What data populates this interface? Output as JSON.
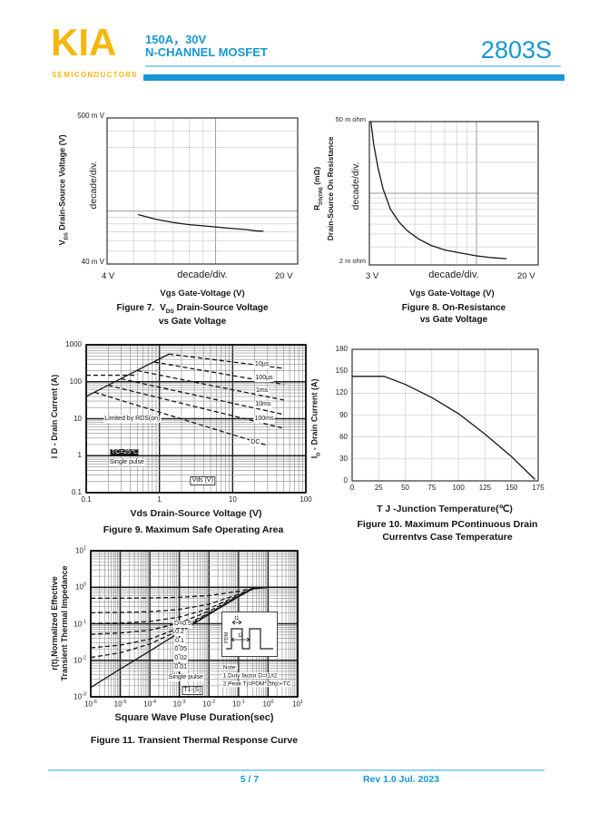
{
  "header": {
    "logo": "KIA",
    "logo_sub": "SEMICONDUCTORS",
    "spec_line1": "150A，30V",
    "spec_line2": "N-CHANNEL MOSFET",
    "part_number": "2803S"
  },
  "footer": {
    "page": "5 / 7",
    "rev": "Rev 1.0 Jul. 2023"
  },
  "colors": {
    "brand_blue": "#1697d4",
    "brand_yellow": "#f6b70c",
    "rule_light_blue": "#8fd4ef",
    "grid_light": "#c4c4c4",
    "grid_dark": "#8a8a8a",
    "curve": "#161616"
  },
  "chart_data": [
    {
      "id": "fig7",
      "type": "line",
      "caption": {
        "pre": "Figure 7.",
        "base": "V",
        "sub": "DS",
        "rest": " Drain-Source Voltage",
        "line2": "vs Gate Voltage"
      },
      "ylabel": {
        "base": "V",
        "sub": "DS",
        "rest": " Drain-Source Voltage (V)"
      },
      "ylabel_inner": "decade/div.",
      "y_top_label": "500 m V",
      "y_bottom_label": "40 m V",
      "x_left_label": "4 V",
      "x_center_label": "decade/div.",
      "x_right_label": "20 V",
      "xlabel": "Vgs Gate-Voltage (V)",
      "x_scale": "log",
      "x_range": [
        4,
        20
      ],
      "y_scale": "log",
      "y_range": [
        0.04,
        0.5
      ],
      "grid": "light",
      "series": [
        {
          "name": "VDS vs VGS",
          "style": "solid",
          "points": [
            [
              5.2,
              0.094
            ],
            [
              6,
              0.087
            ],
            [
              7,
              0.082
            ],
            [
              8,
              0.079
            ],
            [
              9,
              0.0775
            ],
            [
              10,
              0.076
            ],
            [
              11,
              0.0745
            ],
            [
              12,
              0.0735
            ],
            [
              13,
              0.0725
            ],
            [
              14,
              0.071
            ],
            [
              15,
              0.0705
            ]
          ]
        }
      ]
    },
    {
      "id": "fig8",
      "type": "line",
      "caption": {
        "line1": "Figure 8. On-Resistance",
        "line2": "vs Gate Voltage"
      },
      "ylabel": {
        "base": "R",
        "sub": "DS(ON)",
        "rest": " (mΩ)",
        "line2": "Drain-Source On Resistance"
      },
      "ylabel_inner": "decade/div.",
      "y_top_label": "50 m ohm",
      "y_bottom_label": "2 m ohm",
      "x_left_label": "3 V",
      "x_center_label": "decade/div.",
      "x_right_label": "20 V",
      "xlabel": "Vgs Gate-Voltage (V)",
      "x_scale": "log",
      "x_range": [
        3,
        20
      ],
      "y_scale": "log",
      "y_range": [
        2,
        50
      ],
      "grid": "light",
      "series": [
        {
          "name": "RDS(ON) vs VGS",
          "style": "solid",
          "points": [
            [
              3.05,
              50
            ],
            [
              3.15,
              30
            ],
            [
              3.3,
              18
            ],
            [
              3.5,
              11
            ],
            [
              3.8,
              7
            ],
            [
              4.2,
              5.2
            ],
            [
              4.6,
              4.3
            ],
            [
              5.2,
              3.6
            ],
            [
              6,
              3.1
            ],
            [
              7,
              2.8
            ],
            [
              8.5,
              2.6
            ],
            [
              10,
              2.45
            ],
            [
              12,
              2.35
            ],
            [
              14,
              2.3
            ]
          ]
        }
      ]
    },
    {
      "id": "fig9",
      "type": "line",
      "caption": {
        "line1": "Figure 9. Maximum Safe Operating Area"
      },
      "ylabel_left": "I D - Drain Current (A)",
      "xlabel": "Vds Drain-Source Voltage (V)",
      "x_scale": "log",
      "x_range": [
        0.1,
        100
      ],
      "y_scale": "log",
      "y_range": [
        0.1,
        1000
      ],
      "grid": "dark",
      "x_ticks": [
        {
          "label": "0.1",
          "v": 0.1
        },
        {
          "label": "1",
          "v": 1
        },
        {
          "label": "10",
          "v": 10
        },
        {
          "label": "100",
          "v": 100
        }
      ],
      "y_ticks": [
        {
          "label": "1000",
          "v": 1000
        },
        {
          "label": "100",
          "v": 100
        },
        {
          "label": "10",
          "v": 10
        },
        {
          "label": "1",
          "v": 1
        },
        {
          "label": "0.1",
          "v": 0.1
        }
      ],
      "series": [
        {
          "name": "RDS(on) limit",
          "style": "solid",
          "points": [
            [
              0.1,
              40
            ],
            [
              1.35,
              560
            ]
          ]
        },
        {
          "name": "package current limit",
          "style": "dashed",
          "points": [
            [
              0.1,
              150
            ],
            [
              0.5,
              150
            ]
          ]
        },
        {
          "name": "10µs",
          "style": "dashed",
          "points": [
            [
              1.35,
              560
            ],
            [
              50,
              230
            ]
          ]
        },
        {
          "name": "100µs",
          "style": "dashed",
          "points": [
            [
              0.85,
              340
            ],
            [
              50,
              85
            ]
          ]
        },
        {
          "name": "1ms",
          "style": "dashed",
          "points": [
            [
              0.5,
              200
            ],
            [
              50,
              32
            ]
          ]
        },
        {
          "name": "10ms",
          "style": "dashed",
          "points": [
            [
              0.3,
              120
            ],
            [
              50,
              13
            ]
          ]
        },
        {
          "name": "100ms",
          "style": "dashed",
          "points": [
            [
              0.2,
              80
            ],
            [
              50,
              5.5
            ]
          ]
        },
        {
          "name": "DC",
          "style": "dashed",
          "points": [
            [
              0.13,
              52
            ],
            [
              30,
              1.9
            ]
          ]
        }
      ],
      "annotations": [
        {
          "t": "Limited by RDS(on)",
          "fx": 0.21,
          "fy": 0.5
        },
        {
          "t": "TC=25℃",
          "fx": 0.175,
          "fy": 0.73,
          "cls": "inv"
        },
        {
          "t": "Single pulse",
          "fx": 0.185,
          "fy": 0.795
        },
        {
          "t": "Vds (V)",
          "fx": 0.53,
          "fy": 0.92,
          "cls": "box"
        },
        {
          "t": "10µs",
          "fx": 0.8,
          "fy": 0.135
        },
        {
          "t": "100µs",
          "fx": 0.81,
          "fy": 0.225
        },
        {
          "t": "1ms",
          "fx": 0.8,
          "fy": 0.315
        },
        {
          "t": "10ms",
          "fx": 0.805,
          "fy": 0.405
        },
        {
          "t": "100ms",
          "fx": 0.81,
          "fy": 0.5
        },
        {
          "t": "DC",
          "fx": 0.77,
          "fy": 0.66
        }
      ]
    },
    {
      "id": "fig10",
      "type": "line",
      "caption": {
        "line1": "Figure 10. Maximum  PContinuous Drain",
        "line2": "Currentvs Case Temperature"
      },
      "ylabel": {
        "base": "I",
        "sub": "D",
        "rest": " - Drain Current (A)"
      },
      "xlabel": "T J -Junction Temperature(℃)",
      "x_scale": "linear",
      "x_range": [
        0,
        175
      ],
      "x_step": 25,
      "y_scale": "linear",
      "y_range": [
        0,
        180
      ],
      "y_step": 30,
      "grid": "light",
      "x_ticks": [
        {
          "label": "0",
          "v": 0
        },
        {
          "label": "25",
          "v": 25
        },
        {
          "label": "50",
          "v": 50
        },
        {
          "label": "75",
          "v": 75
        },
        {
          "label": "100",
          "v": 100
        },
        {
          "label": "125",
          "v": 125
        },
        {
          "label": "150",
          "v": 150
        },
        {
          "label": "175",
          "v": 175
        }
      ],
      "y_ticks": [
        {
          "label": "180",
          "v": 180
        },
        {
          "label": "150",
          "v": 150
        },
        {
          "label": "120",
          "v": 120
        },
        {
          "label": "90",
          "v": 90
        },
        {
          "label": "60",
          "v": 60
        },
        {
          "label": "30",
          "v": 30
        },
        {
          "label": "0",
          "v": 0
        }
      ],
      "series": [
        {
          "name": "ID(max) vs TJ",
          "style": "solid",
          "points": [
            [
              0,
              143
            ],
            [
              30,
              143
            ],
            [
              50,
              132
            ],
            [
              75,
              114
            ],
            [
              100,
              92
            ],
            [
              125,
              64
            ],
            [
              150,
              33
            ],
            [
              172,
              2
            ]
          ]
        }
      ]
    },
    {
      "id": "fig11",
      "type": "line",
      "caption": {
        "line1": "Figure 11. Transient Thermal Response Curve"
      },
      "ylabel": {
        "line1": "r(t),Normalized Effective",
        "line2": "Transient Thermal Impedance"
      },
      "xlabel": "Square Wave Pluse Duration(sec)",
      "x_scale": "log",
      "x_range": [
        1e-06,
        10
      ],
      "y_scale": "log",
      "y_range": [
        0.001,
        10
      ],
      "grid": "dark",
      "x_ticks": [
        {
          "b": "10",
          "e": "-6",
          "v": 1e-06
        },
        {
          "b": "10",
          "e": "-5",
          "v": 1e-05
        },
        {
          "b": "10",
          "e": "-4",
          "v": 0.0001
        },
        {
          "b": "10",
          "e": "-3",
          "v": 0.001
        },
        {
          "b": "10",
          "e": "-2",
          "v": 0.01
        },
        {
          "b": "10",
          "e": "-1",
          "v": 0.1
        },
        {
          "b": "10",
          "e": "0",
          "v": 1
        },
        {
          "b": "10",
          "e": "1",
          "v": 10
        }
      ],
      "y_ticks": [
        {
          "b": "10",
          "e": "1",
          "v": 10
        },
        {
          "b": "10",
          "e": "0",
          "v": 1
        },
        {
          "b": "10",
          "e": "-1",
          "v": 0.1
        },
        {
          "b": "10",
          "e": "-2",
          "v": 0.01
        },
        {
          "b": "10",
          "e": "-3",
          "v": 0.001
        }
      ],
      "series": [
        {
          "name": "D=0.5",
          "style": "dashed",
          "points": [
            [
              1e-06,
              0.501
            ],
            [
              1e-05,
              0.503
            ],
            [
              0.0001,
              0.509
            ],
            [
              0.001,
              0.529
            ],
            [
              0.01,
              0.59
            ],
            [
              0.1,
              0.775
            ],
            [
              0.3,
              0.93
            ],
            [
              1,
              1
            ],
            [
              10,
              1
            ]
          ]
        },
        {
          "name": "D=0.2",
          "style": "dashed",
          "points": [
            [
              1e-06,
              0.201
            ],
            [
              1e-05,
              0.205
            ],
            [
              0.0001,
              0.214
            ],
            [
              0.001,
              0.246
            ],
            [
              0.01,
              0.344
            ],
            [
              0.1,
              0.64
            ],
            [
              0.3,
              0.92
            ],
            [
              1,
              1
            ],
            [
              10,
              1
            ]
          ]
        },
        {
          "name": "D=0.1",
          "style": "dashed",
          "points": [
            [
              1e-06,
              0.102
            ],
            [
              1e-05,
              0.105
            ],
            [
              0.0001,
              0.116
            ],
            [
              0.001,
              0.152
            ],
            [
              0.01,
              0.262
            ],
            [
              0.1,
              0.595
            ],
            [
              0.3,
              0.91
            ],
            [
              1,
              1
            ],
            [
              10,
              1
            ]
          ]
        },
        {
          "name": "D=0.05",
          "style": "dashed",
          "points": [
            [
              1e-06,
              0.052
            ],
            [
              1e-05,
              0.056
            ],
            [
              0.0001,
              0.067
            ],
            [
              0.001,
              0.105
            ],
            [
              0.01,
              0.221
            ],
            [
              0.1,
              0.57
            ],
            [
              0.3,
              0.9
            ],
            [
              1,
              1
            ],
            [
              10,
              1
            ]
          ]
        },
        {
          "name": "D=0.02",
          "style": "dashed",
          "points": [
            [
              1e-06,
              0.022
            ],
            [
              1e-05,
              0.026
            ],
            [
              0.0001,
              0.038
            ],
            [
              0.001,
              0.077
            ],
            [
              0.01,
              0.196
            ],
            [
              0.1,
              0.56
            ],
            [
              0.3,
              0.9
            ],
            [
              1,
              1
            ],
            [
              10,
              1
            ]
          ]
        },
        {
          "name": "D=0.01",
          "style": "dashed",
          "points": [
            [
              1e-06,
              0.012
            ],
            [
              1e-05,
              0.016
            ],
            [
              0.0001,
              0.028
            ],
            [
              0.001,
              0.067
            ],
            [
              0.01,
              0.188
            ],
            [
              0.1,
              0.555
            ],
            [
              0.3,
              0.9
            ],
            [
              1,
              1
            ],
            [
              10,
              1
            ]
          ]
        },
        {
          "name": "Single pulse",
          "style": "solid",
          "points": [
            [
              1e-06,
              0.0018
            ],
            [
              1e-05,
              0.0058
            ],
            [
              0.0001,
              0.018
            ],
            [
              0.001,
              0.058
            ],
            [
              0.01,
              0.18
            ],
            [
              0.1,
              0.55
            ],
            [
              0.3,
              0.9
            ],
            [
              1,
              1
            ],
            [
              10,
              1
            ]
          ]
        }
      ],
      "annotations": [
        {
          "t": "D=0.5",
          "fx": 0.445,
          "fy": 0.5
        },
        {
          "t": "0.2",
          "fx": 0.43,
          "fy": 0.56
        },
        {
          "t": "0.1",
          "fx": 0.43,
          "fy": 0.62
        },
        {
          "t": "0.05",
          "fx": 0.435,
          "fy": 0.68
        },
        {
          "t": "0.02",
          "fx": 0.435,
          "fy": 0.74
        },
        {
          "t": "0.01",
          "fx": 0.435,
          "fy": 0.8
        },
        {
          "t": "Single pulse",
          "fx": 0.46,
          "fy": 0.87
        },
        {
          "t": "T1-[S]",
          "fx": 0.49,
          "fy": 0.955,
          "cls": "box"
        },
        {
          "t": "Note:",
          "fx": 0.635,
          "fy": 0.8,
          "cls": "note"
        },
        {
          "t": "1.Duty factor D=t1/t2",
          "fx": 0.635,
          "fy": 0.855,
          "cls": "note"
        },
        {
          "t": "2.Peak Tj=PDM*Zthjc+TC",
          "fx": 0.635,
          "fy": 0.91,
          "cls": "note"
        }
      ],
      "inset": {
        "pdm": "PDM",
        "t1": "t1",
        "t2": "t2"
      }
    }
  ]
}
